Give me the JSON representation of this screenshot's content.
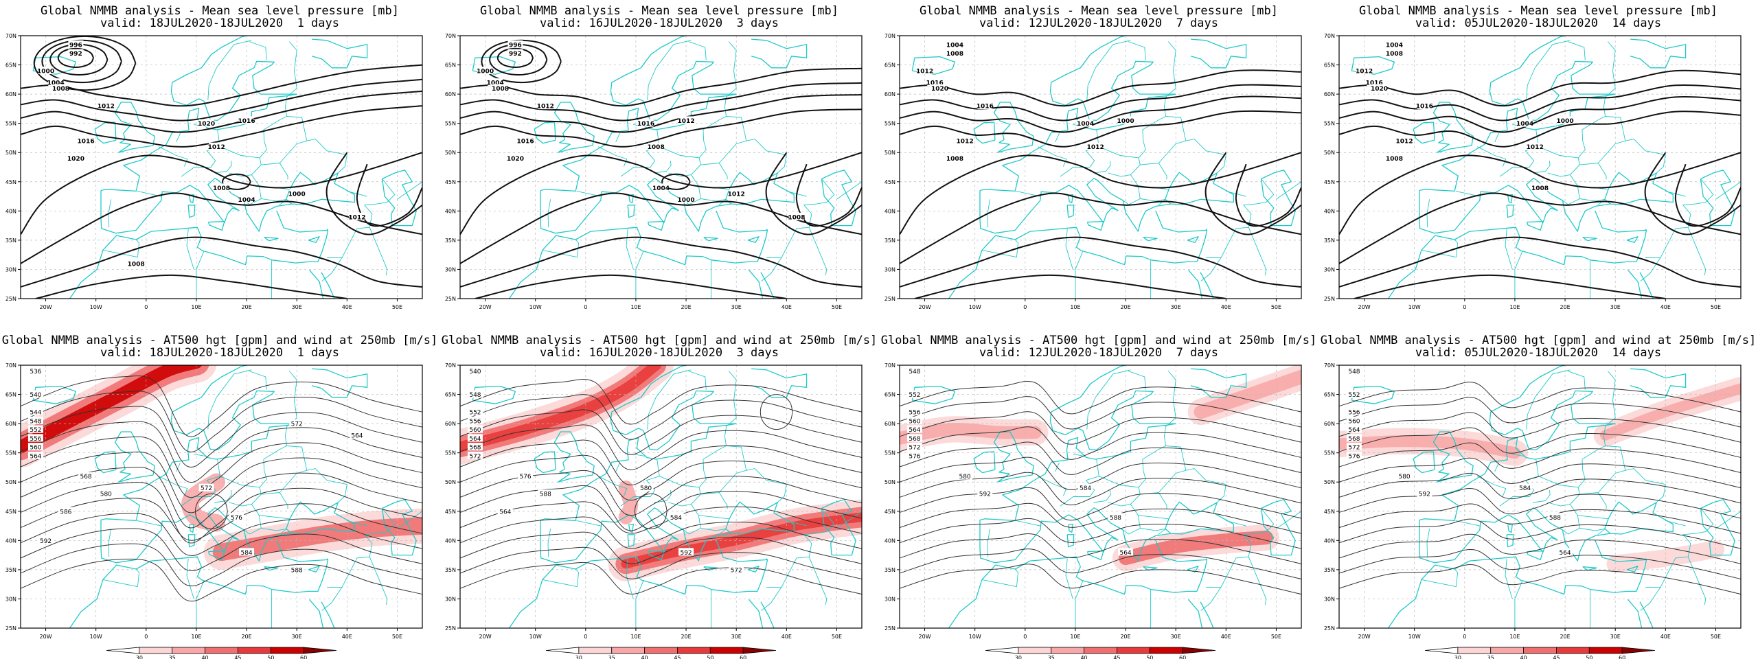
{
  "panels": [
    {
      "row": 0,
      "title_line1": "Global NMMB analysis - Mean sea level pressure [mb]",
      "title_line2": "valid: 18JUL2020-18JUL2020  1 days",
      "kind": "mslp"
    },
    {
      "row": 0,
      "title_line1": "Global NMMB analysis - Mean sea level pressure [mb]",
      "title_line2": "valid: 16JUL2020-18JUL2020  3 days",
      "kind": "mslp"
    },
    {
      "row": 0,
      "title_line1": "Global NMMB analysis - Mean sea level pressure [mb]",
      "title_line2": "valid: 12JUL2020-18JUL2020  7 days",
      "kind": "mslp"
    },
    {
      "row": 0,
      "title_line1": "Global NMMB analysis - Mean sea level pressure [mb]",
      "title_line2": "valid: 05JUL2020-18JUL2020  14 days",
      "kind": "mslp"
    },
    {
      "row": 1,
      "title_line1": "Global NMMB analysis - AT500 hgt [gpm] and wind at 250mb [m/s]",
      "title_line2": "valid: 18JUL2020-18JUL2020  1 days",
      "kind": "z500"
    },
    {
      "row": 1,
      "title_line1": "Global NMMB analysis - AT500 hgt [gpm] and wind at 250mb [m/s]",
      "title_line2": "valid: 16JUL2020-18JUL2020  3 days",
      "kind": "z500"
    },
    {
      "row": 1,
      "title_line1": "Global NMMB analysis - AT500 hgt [gpm] and wind at 250mb [m/s]",
      "title_line2": "valid: 12JUL2020-18JUL2020  7 days",
      "kind": "z500"
    },
    {
      "row": 1,
      "title_line1": "Global NMMB analysis - AT500 hgt [gpm] and wind at 250mb [m/s]",
      "title_line2": "valid: 05JUL2020-18JUL2020  14 days",
      "kind": "z500"
    }
  ],
  "lat_labels": [
    "70N",
    "65N",
    "60N",
    "55N",
    "50N",
    "45N",
    "40N",
    "35N",
    "30N",
    "25N"
  ],
  "lon_labels": [
    "20W",
    "10W",
    "0",
    "10E",
    "20E",
    "30E",
    "40E",
    "50E"
  ],
  "colorbar": {
    "ticks": [
      "30",
      "35",
      "40",
      "45",
      "50",
      "60"
    ],
    "colors": [
      "#ffffff",
      "#fcd6d6",
      "#f8a8a8",
      "#f07070",
      "#e83a3a",
      "#cc0000",
      "#880000"
    ]
  },
  "contour_labels": {
    "mslp": [
      [
        "996",
        "992",
        "1000",
        "1004",
        "1008",
        "1012",
        "1016",
        "1020",
        "1020",
        "1016",
        "1012",
        "1008",
        "1004",
        "1000",
        "1012",
        "1008"
      ],
      [
        "996",
        "992",
        "1000",
        "1004",
        "1008",
        "1012",
        "1016",
        "1020",
        "1016",
        "1012",
        "1008",
        "1004",
        "1000",
        "1012",
        "1008"
      ],
      [
        "1004",
        "1008",
        "1012",
        "1016",
        "1020",
        "1016",
        "1012",
        "1008",
        "1004",
        "1000",
        "1012"
      ],
      [
        "1004",
        "1008",
        "1012",
        "1016",
        "1020",
        "1016",
        "1012",
        "1008",
        "1004",
        "1000",
        "1012",
        "1008"
      ]
    ],
    "z500": [
      [
        "536",
        "540",
        "544",
        "548",
        "552",
        "556",
        "560",
        "564",
        "568",
        "572",
        "576",
        "580",
        "584",
        "586",
        "588",
        "592",
        "572",
        "564"
      ],
      [
        "540",
        "548",
        "552",
        "556",
        "560",
        "564",
        "568",
        "572",
        "576",
        "580",
        "584",
        "588",
        "592",
        "564",
        "572"
      ],
      [
        "548",
        "552",
        "556",
        "560",
        "564",
        "568",
        "572",
        "576",
        "580",
        "584",
        "588",
        "592",
        "564"
      ],
      [
        "548",
        "552",
        "556",
        "560",
        "564",
        "568",
        "572",
        "576",
        "580",
        "584",
        "588",
        "592",
        "564"
      ]
    ]
  }
}
